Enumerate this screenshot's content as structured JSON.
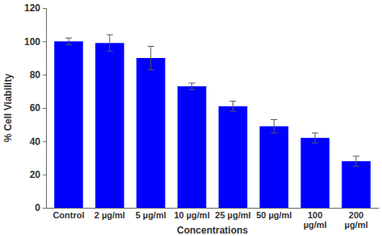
{
  "chart_data": {
    "type": "bar",
    "x_label": "Concentrations",
    "y_label": "% Cell Viability",
    "categories": [
      "Control",
      "2 µg/ml",
      "5 µg/ml",
      "10 µg/ml",
      "25 µg/ml",
      "50 µg/ml",
      "100 µg/ml",
      "200 µg/ml"
    ],
    "values": [
      100,
      99,
      90,
      73,
      61,
      49,
      42,
      28
    ],
    "errors": [
      2,
      5,
      7,
      2,
      3,
      4,
      3,
      3
    ],
    "color": "#0000ff",
    "ylim": [
      0,
      120
    ],
    "yticks": [
      0,
      20,
      40,
      60,
      80,
      100,
      120
    ],
    "grid": false
  }
}
